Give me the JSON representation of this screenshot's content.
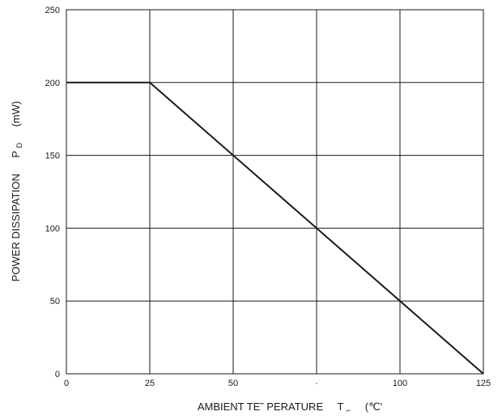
{
  "chart_data": {
    "type": "line",
    "title": "",
    "xlabel": "AMBIENT TE˜ PERATURE   T    (℃'",
    "xlabel_parts": {
      "main": "AMBIENT TE˜ PERATURE",
      "symbol": "T",
      "subscript": "⌐",
      "unit": "(℃'"
    },
    "ylabel": "POWER DISSIPATION   PD   (mW)",
    "ylabel_parts": {
      "main": "POWER DISSIPATION",
      "symbol": "P",
      "subscript": "D",
      "unit": "(mW)"
    },
    "xlim": [
      0,
      125
    ],
    "ylim": [
      0,
      250
    ],
    "xticks": [
      0,
      25,
      50,
      75,
      100,
      125
    ],
    "xtick_labels": [
      "0",
      "25",
      "50",
      "·",
      "100",
      "125"
    ],
    "yticks": [
      0,
      50,
      100,
      150,
      200,
      250
    ],
    "ytick_labels": [
      "0",
      "50",
      "100",
      "150",
      "200",
      "250"
    ],
    "grid": true,
    "series": [
      {
        "x": [
          0,
          25,
          125
        ],
        "y": [
          200,
          200,
          0
        ],
        "color": "#1a1a1a"
      }
    ]
  }
}
